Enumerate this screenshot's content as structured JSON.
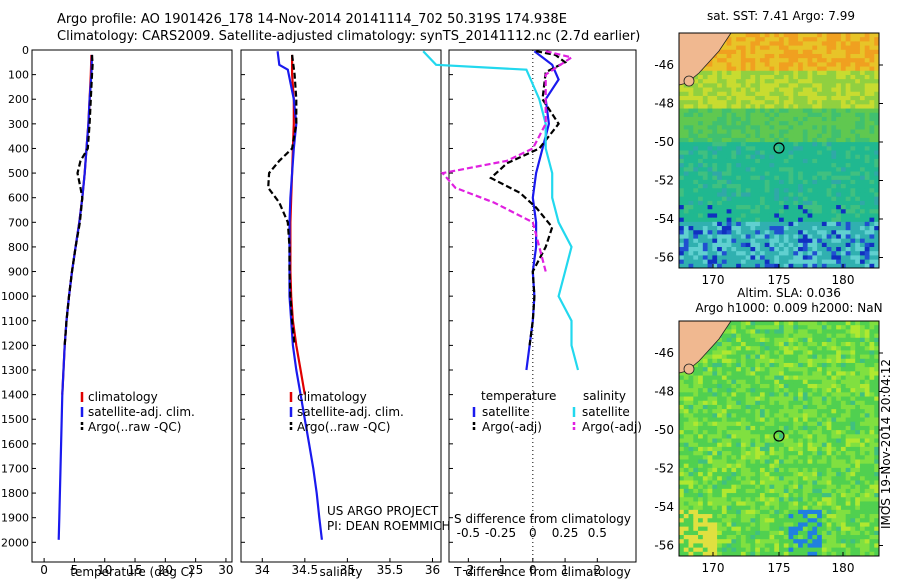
{
  "header": {
    "line1": "Argo profile: AO 1901426_178 14-Nov-2014 20141114_702 50.319S 174.938E",
    "line2": "Climatology: CARS2009. Satellite-adjusted climatology: synTS_20141112.nc (2.7d earlier)"
  },
  "colors": {
    "climatology": "#e00000",
    "satellite": "#1a1aee",
    "argo": "#000000",
    "sal_satellite": "#22d8ee",
    "sal_argo": "#e020e0"
  },
  "chart_data": [
    {
      "type": "line",
      "xlabel": "temperature (deg C)",
      "ylabel": "",
      "xlim": [
        -2,
        31
      ],
      "ylim": [
        2080,
        0
      ],
      "xticks": [
        0,
        5,
        10,
        15,
        20,
        25,
        30
      ],
      "yticks": [
        0,
        100,
        200,
        300,
        400,
        500,
        600,
        700,
        800,
        900,
        1000,
        1100,
        1200,
        1300,
        1400,
        1500,
        1600,
        1700,
        1800,
        1900,
        2000
      ],
      "legend": {
        "placement": "lower-center",
        "entries": [
          {
            "label": "climatology",
            "color": "#e00000",
            "style": "solid"
          },
          {
            "label": "satellite-adj. clim.",
            "color": "#1a1aee",
            "style": "solid"
          },
          {
            "label": "Argo(..raw -QC)",
            "color": "#000000",
            "style": "dashed"
          }
        ]
      },
      "series": [
        {
          "name": "climatology",
          "color": "#e00000",
          "style": "solid",
          "points": [
            [
              7.8,
              20
            ],
            [
              7.7,
              100
            ],
            [
              7.5,
              200
            ],
            [
              7.3,
              300
            ],
            [
              7.0,
              400
            ],
            [
              6.7,
              500
            ],
            [
              6.3,
              600
            ],
            [
              5.8,
              700
            ],
            [
              5.2,
              800
            ],
            [
              4.6,
              900
            ],
            [
              4.1,
              1000
            ],
            [
              3.7,
              1100
            ],
            [
              3.4,
              1200
            ],
            [
              3.2,
              1300
            ],
            [
              3.0,
              1400
            ]
          ]
        },
        {
          "name": "satellite-adj. clim.",
          "color": "#1a1aee",
          "style": "solid",
          "points": [
            [
              7.9,
              20
            ],
            [
              7.8,
              100
            ],
            [
              7.5,
              200
            ],
            [
              7.3,
              300
            ],
            [
              7.0,
              400
            ],
            [
              6.7,
              500
            ],
            [
              6.3,
              600
            ],
            [
              5.8,
              700
            ],
            [
              5.2,
              800
            ],
            [
              4.6,
              900
            ],
            [
              4.1,
              1000
            ],
            [
              3.7,
              1100
            ],
            [
              3.4,
              1200
            ],
            [
              3.2,
              1300
            ],
            [
              3.0,
              1400
            ],
            [
              2.9,
              1500
            ],
            [
              2.8,
              1600
            ],
            [
              2.7,
              1700
            ],
            [
              2.6,
              1800
            ],
            [
              2.5,
              1900
            ],
            [
              2.4,
              1990
            ]
          ]
        },
        {
          "name": "Argo(..raw -QC)",
          "color": "#000000",
          "style": "dashed",
          "points": [
            [
              7.9,
              20
            ],
            [
              8.0,
              60
            ],
            [
              7.9,
              100
            ],
            [
              7.7,
              200
            ],
            [
              7.5,
              300
            ],
            [
              7.2,
              400
            ],
            [
              6.0,
              450
            ],
            [
              5.5,
              500
            ],
            [
              6.0,
              560
            ],
            [
              6.3,
              600
            ],
            [
              5.9,
              700
            ],
            [
              5.2,
              800
            ],
            [
              4.6,
              900
            ],
            [
              4.1,
              1000
            ],
            [
              3.7,
              1100
            ],
            [
              3.4,
              1200
            ]
          ]
        }
      ]
    },
    {
      "type": "line",
      "xlabel": "salinity",
      "ylabel": "",
      "xlim": [
        33.75,
        36.1
      ],
      "ylim": [
        2080,
        0
      ],
      "xticks": [
        34,
        34.5,
        35,
        35.5,
        36
      ],
      "xticklabels": [
        "34",
        "34.5",
        "35",
        "35.5",
        "36"
      ],
      "legend": {
        "placement": "lower-center",
        "entries": [
          {
            "label": "climatology",
            "color": "#e00000",
            "style": "solid"
          },
          {
            "label": "satellite-adj. clim.",
            "color": "#1a1aee",
            "style": "solid"
          },
          {
            "label": "Argo(..raw -QC)",
            "color": "#000000",
            "style": "dashed"
          }
        ]
      },
      "annotation": [
        "US ARGO PROJECT",
        "PI: DEAN ROEMMICH"
      ],
      "series": [
        {
          "name": "climatology",
          "color": "#e00000",
          "style": "solid",
          "points": [
            [
              34.35,
              20
            ],
            [
              34.35,
              100
            ],
            [
              34.37,
              200
            ],
            [
              34.37,
              300
            ],
            [
              34.36,
              400
            ],
            [
              34.35,
              500
            ],
            [
              34.34,
              600
            ],
            [
              34.33,
              700
            ],
            [
              34.33,
              800
            ],
            [
              34.33,
              900
            ],
            [
              34.34,
              1000
            ],
            [
              34.36,
              1100
            ],
            [
              34.4,
              1200
            ],
            [
              34.45,
              1300
            ],
            [
              34.5,
              1400
            ]
          ]
        },
        {
          "name": "satellite-adj. clim.",
          "color": "#1a1aee",
          "style": "solid",
          "points": [
            [
              34.18,
              5
            ],
            [
              34.2,
              60
            ],
            [
              34.3,
              80
            ],
            [
              34.37,
              200
            ],
            [
              34.4,
              300
            ],
            [
              34.37,
              400
            ],
            [
              34.35,
              500
            ],
            [
              34.33,
              600
            ],
            [
              34.32,
              700
            ],
            [
              34.32,
              800
            ],
            [
              34.32,
              900
            ],
            [
              34.32,
              1000
            ],
            [
              34.34,
              1100
            ],
            [
              34.36,
              1200
            ],
            [
              34.4,
              1300
            ],
            [
              34.45,
              1400
            ],
            [
              34.5,
              1500
            ],
            [
              34.55,
              1600
            ],
            [
              34.6,
              1700
            ],
            [
              34.64,
              1800
            ],
            [
              34.67,
              1900
            ],
            [
              34.7,
              1990
            ]
          ]
        },
        {
          "name": "Argo(..raw -QC)",
          "color": "#000000",
          "style": "dashed",
          "points": [
            [
              34.35,
              20
            ],
            [
              34.38,
              100
            ],
            [
              34.4,
              200
            ],
            [
              34.4,
              300
            ],
            [
              34.35,
              400
            ],
            [
              34.2,
              450
            ],
            [
              34.08,
              500
            ],
            [
              34.07,
              560
            ],
            [
              34.2,
              620
            ],
            [
              34.3,
              700
            ],
            [
              34.32,
              800
            ],
            [
              34.32,
              900
            ],
            [
              34.33,
              1000
            ],
            [
              34.35,
              1100
            ],
            [
              34.38,
              1200
            ]
          ]
        }
      ]
    },
    {
      "type": "line",
      "xlabel": "T difference from climatology",
      "xlabel2": "S difference from climatology",
      "xlim": [
        -2.6,
        3.2
      ],
      "ylim": [
        2080,
        0
      ],
      "xticks": [
        -2,
        -1,
        0,
        1,
        2
      ],
      "xticks_s": [
        -0.5,
        -0.25,
        0,
        0.25,
        0.5
      ],
      "xticklabels_s": [
        "-0.5",
        "-0.25",
        "0",
        "0.25",
        "0.5"
      ],
      "legend": {
        "placement": "lower-center",
        "temperature_title": "temperature",
        "salinity_title": "salinity",
        "entries": [
          {
            "label": "satellite",
            "color": "#1a1aee",
            "style": "solid",
            "group": "temperature"
          },
          {
            "label": "Argo(-adj)",
            "color": "#000000",
            "style": "dashed",
            "group": "temperature"
          },
          {
            "label": "satellite",
            "color": "#22d8ee",
            "style": "solid",
            "group": "salinity"
          },
          {
            "label": "Argo(-adj)",
            "color": "#e020e0",
            "style": "dashed",
            "group": "salinity"
          }
        ]
      },
      "series": [
        {
          "name": "temperature satellite",
          "color": "#1a1aee",
          "style": "solid",
          "points": [
            [
              0.05,
              5
            ],
            [
              0.3,
              30
            ],
            [
              0.6,
              60
            ],
            [
              0.8,
              120
            ],
            [
              0.4,
              200
            ],
            [
              0.5,
              300
            ],
            [
              0.3,
              400
            ],
            [
              0.1,
              500
            ],
            [
              0.0,
              600
            ],
            [
              0.1,
              700
            ],
            [
              0.1,
              800
            ],
            [
              0.0,
              900
            ],
            [
              0.05,
              1000
            ],
            [
              0.0,
              1100
            ],
            [
              -0.1,
              1200
            ],
            [
              -0.2,
              1300
            ]
          ]
        },
        {
          "name": "temperature Argo(-adj)",
          "color": "#000000",
          "style": "dashed",
          "points": [
            [
              0.1,
              5
            ],
            [
              0.7,
              20
            ],
            [
              1.0,
              50
            ],
            [
              0.4,
              90
            ],
            [
              0.3,
              200
            ],
            [
              0.8,
              300
            ],
            [
              0.2,
              400
            ],
            [
              -0.8,
              460
            ],
            [
              -1.3,
              520
            ],
            [
              -0.4,
              580
            ],
            [
              0.1,
              640
            ],
            [
              0.6,
              720
            ],
            [
              0.4,
              800
            ],
            [
              0.0,
              900
            ],
            [
              0.05,
              1000
            ],
            [
              0.0,
              1100
            ],
            [
              -0.1,
              1200
            ]
          ]
        },
        {
          "name": "salinity satellite",
          "color": "#22d8ee",
          "style": "solid",
          "points": [
            [
              -0.85,
              5
            ],
            [
              -0.75,
              60
            ],
            [
              -0.05,
              80
            ],
            [
              0.05,
              200
            ],
            [
              0.1,
              300
            ],
            [
              0.1,
              400
            ],
            [
              0.15,
              500
            ],
            [
              0.15,
              600
            ],
            [
              0.2,
              700
            ],
            [
              0.3,
              800
            ],
            [
              0.25,
              900
            ],
            [
              0.2,
              1000
            ],
            [
              0.3,
              1100
            ],
            [
              0.3,
              1200
            ],
            [
              0.35,
              1300
            ]
          ]
        },
        {
          "name": "salinity Argo(-adj)",
          "color": "#e020e0",
          "style": "dashed",
          "points": [
            [
              0.1,
              5
            ],
            [
              0.3,
              30
            ],
            [
              0.1,
              100
            ],
            [
              0.1,
              300
            ],
            [
              0.0,
              400
            ],
            [
              -0.2,
              450
            ],
            [
              -0.7,
              500
            ],
            [
              -0.6,
              560
            ],
            [
              -0.3,
              620
            ],
            [
              0.0,
              700
            ],
            [
              0.05,
              800
            ],
            [
              0.1,
              900
            ]
          ]
        }
      ]
    }
  ],
  "maps": {
    "sst": {
      "title": "sat. SST: 7.41  Argo: 7.99",
      "xticks": [
        "170",
        "175",
        "180"
      ],
      "yticks": [
        "-46",
        "-48",
        "-50",
        "-52",
        "-54",
        "-56"
      ]
    },
    "sla": {
      "title_line1": "Altim. SLA: 0.036",
      "title_line2": "Argo h1000: 0.009 h2000: NaN",
      "xticks": [
        "170",
        "175",
        "180"
      ],
      "yticks": [
        "-46",
        "-48",
        "-50",
        "-52",
        "-54",
        "-56"
      ]
    },
    "side_label": "IMOS 19-Nov-2014 20:04:12"
  }
}
